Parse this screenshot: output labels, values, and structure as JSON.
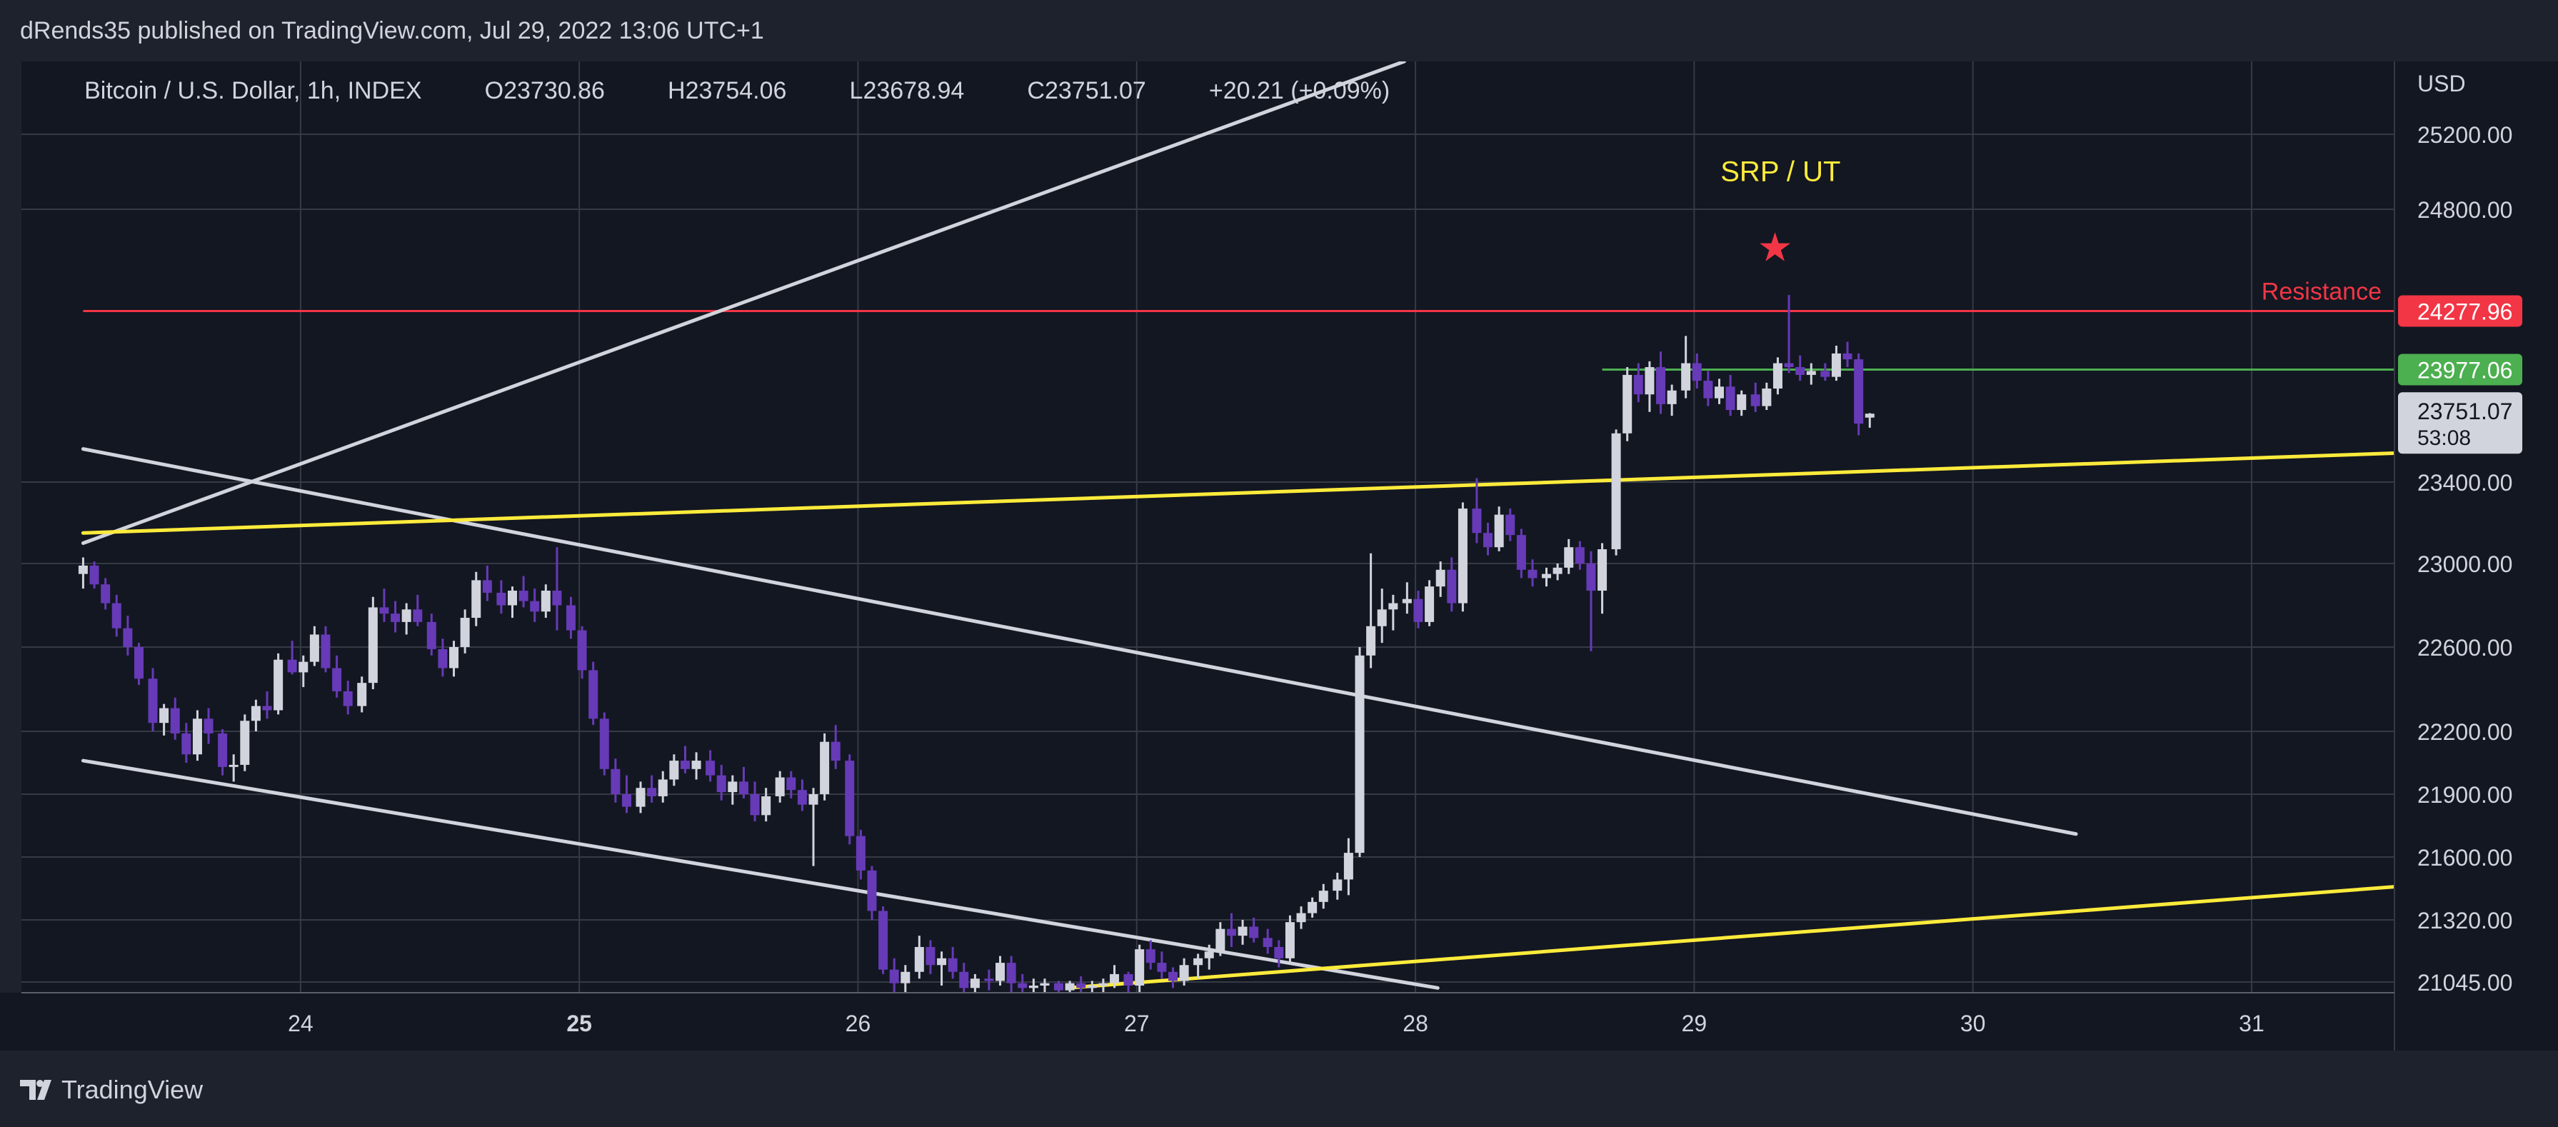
{
  "header": {
    "published": "dRends35 published on TradingView.com, Jul 29, 2022 13:06 UTC+1"
  },
  "legend": {
    "symbol": "Bitcoin / U.S. Dollar, 1h, INDEX",
    "open": "O23730.86",
    "high": "H23754.06",
    "low": "L23678.94",
    "close": "C23751.07",
    "change": "+20.21 (+0.09%)"
  },
  "footer": {
    "brand": "TradingView"
  },
  "colors": {
    "background": "#1e222d",
    "plot_background": "#131722",
    "grid": "#363a45",
    "text": "#d1d4dc",
    "bull_candle": "#d1d4dc",
    "bear_candle": "#673ab7",
    "resistance": "#f23645",
    "support_line": "#ffeb3b",
    "green_level": "#4caf50",
    "trendline": "#d1d4dc"
  },
  "chart_data": {
    "type": "candlestick",
    "title": "Bitcoin / U.S. Dollar, 1h, INDEX",
    "currency_label": "USD",
    "x_ticks": [
      {
        "label": "24",
        "t": 24,
        "bold": false
      },
      {
        "label": "25",
        "t": 25,
        "bold": true
      },
      {
        "label": "26",
        "t": 26,
        "bold": false
      },
      {
        "label": "27",
        "t": 27,
        "bold": false
      },
      {
        "label": "28",
        "t": 28,
        "bold": false
      },
      {
        "label": "29",
        "t": 29,
        "bold": false
      },
      {
        "label": "30",
        "t": 30,
        "bold": false
      },
      {
        "label": "31",
        "t": 31,
        "bold": false
      }
    ],
    "x_range": [
      23.22,
      31.75
    ],
    "y_ticks": [
      25200,
      24800,
      23400,
      23000,
      22600,
      22200,
      21900,
      21600,
      21320,
      21045
    ],
    "y_tick_labels": [
      "25200.00",
      "24800.00",
      "23400.00",
      "23000.00",
      "22600.00",
      "22200.00",
      "21900.00",
      "21600.00",
      "21320.00",
      "21045.00"
    ],
    "y_range": [
      21000,
      25550
    ],
    "scale": "piecewise-linear between ticks (auto scale as printed)",
    "price_labels": [
      {
        "value": 24277.96,
        "text": "24277.96",
        "kind": "resistance"
      },
      {
        "value": 23977.06,
        "text": "23977.06",
        "kind": "green"
      },
      {
        "value": 23751.07,
        "text": "23751.07",
        "countdown": "53:08",
        "kind": "last"
      }
    ],
    "horizontal_levels": [
      {
        "name": "Resistance",
        "value": 24277.96,
        "t_start": 23.22,
        "t_end": 31.75,
        "color": "#f23645"
      },
      {
        "name": "",
        "value": 23977.06,
        "t_start": 28.67,
        "t_end": 31.75,
        "color": "#4caf50"
      }
    ],
    "trendlines": [
      {
        "color": "#d1d4dc",
        "p1": [
          23.22,
          23100
        ],
        "p2": [
          27.96,
          25550
        ]
      },
      {
        "color": "#d1d4dc",
        "p1": [
          23.22,
          23570
        ],
        "p2": [
          30.37,
          21710
        ]
      },
      {
        "color": "#d1d4dc",
        "p1": [
          23.22,
          22060
        ],
        "p2": [
          28.08,
          21020
        ]
      },
      {
        "color": "#ffeb3b",
        "p1": [
          23.22,
          23150
        ],
        "p2": [
          31.75,
          23560
        ]
      },
      {
        "color": "#ffeb3b",
        "p1": [
          26.75,
          21020
        ],
        "p2": [
          31.75,
          21490
        ]
      }
    ],
    "annotations": [
      {
        "text": "SRP / UT",
        "t": 29.31,
        "value": 24950,
        "color": "#ffeb3b"
      },
      {
        "text": "★",
        "t": 29.29,
        "value": 24600,
        "color": "#f23645"
      },
      {
        "text": "Resistance",
        "value": 24277.96,
        "position": "right",
        "color": "#f23645"
      }
    ],
    "candles_ohlc_order": [
      "time_day",
      "open",
      "high",
      "low",
      "close"
    ],
    "candles": [
      [
        23.22,
        22950,
        23030,
        22880,
        22990
      ],
      [
        23.26,
        22990,
        23010,
        22880,
        22900
      ],
      [
        23.3,
        22900,
        22930,
        22780,
        22810
      ],
      [
        23.34,
        22810,
        22850,
        22650,
        22690
      ],
      [
        23.38,
        22690,
        22750,
        22560,
        22600
      ],
      [
        23.42,
        22600,
        22620,
        22420,
        22450
      ],
      [
        23.47,
        22450,
        22500,
        22200,
        22240
      ],
      [
        23.51,
        22240,
        22330,
        22180,
        22310
      ],
      [
        23.55,
        22310,
        22360,
        22160,
        22190
      ],
      [
        23.59,
        22190,
        22240,
        22050,
        22090
      ],
      [
        23.63,
        22090,
        22300,
        22060,
        22260
      ],
      [
        23.67,
        22260,
        22310,
        22140,
        22190
      ],
      [
        23.72,
        22190,
        22210,
        21990,
        22030
      ],
      [
        23.76,
        22030,
        22090,
        21960,
        22040
      ],
      [
        23.8,
        22040,
        22280,
        22010,
        22250
      ],
      [
        23.84,
        22250,
        22350,
        22200,
        22320
      ],
      [
        23.88,
        22320,
        22390,
        22260,
        22300
      ],
      [
        23.92,
        22300,
        22570,
        22280,
        22540
      ],
      [
        23.97,
        22540,
        22630,
        22470,
        22480
      ],
      [
        24.01,
        22480,
        22560,
        22410,
        22530
      ],
      [
        24.05,
        22530,
        22700,
        22510,
        22660
      ],
      [
        24.09,
        22660,
        22700,
        22480,
        22500
      ],
      [
        24.13,
        22500,
        22560,
        22360,
        22390
      ],
      [
        24.17,
        22390,
        22440,
        22280,
        22320
      ],
      [
        24.22,
        22320,
        22460,
        22290,
        22430
      ],
      [
        24.26,
        22430,
        22840,
        22400,
        22790
      ],
      [
        24.3,
        22790,
        22880,
        22720,
        22760
      ],
      [
        24.34,
        22760,
        22820,
        22670,
        22720
      ],
      [
        24.38,
        22720,
        22810,
        22660,
        22780
      ],
      [
        24.42,
        22780,
        22850,
        22700,
        22720
      ],
      [
        24.47,
        22720,
        22760,
        22560,
        22590
      ],
      [
        24.51,
        22590,
        22640,
        22460,
        22500
      ],
      [
        24.55,
        22500,
        22630,
        22460,
        22600
      ],
      [
        24.59,
        22600,
        22780,
        22570,
        22740
      ],
      [
        24.63,
        22740,
        22960,
        22700,
        22920
      ],
      [
        24.67,
        22920,
        22990,
        22820,
        22860
      ],
      [
        24.72,
        22860,
        22920,
        22760,
        22800
      ],
      [
        24.76,
        22800,
        22890,
        22740,
        22870
      ],
      [
        24.8,
        22870,
        22940,
        22790,
        22820
      ],
      [
        24.84,
        22820,
        22880,
        22720,
        22770
      ],
      [
        24.88,
        22770,
        22900,
        22740,
        22870
      ],
      [
        24.92,
        22870,
        23080,
        22680,
        22800
      ],
      [
        24.97,
        22800,
        22840,
        22640,
        22680
      ],
      [
        25.01,
        22680,
        22700,
        22450,
        22490
      ],
      [
        25.05,
        22490,
        22530,
        22230,
        22260
      ],
      [
        25.09,
        22260,
        22290,
        21990,
        22020
      ],
      [
        25.13,
        22020,
        22070,
        21860,
        21900
      ],
      [
        25.17,
        21900,
        21990,
        21810,
        21840
      ],
      [
        25.22,
        21840,
        21960,
        21810,
        21930
      ],
      [
        25.26,
        21930,
        21990,
        21860,
        21890
      ],
      [
        25.3,
        21890,
        22010,
        21860,
        21970
      ],
      [
        25.34,
        21970,
        22090,
        21940,
        22060
      ],
      [
        25.38,
        22060,
        22130,
        22000,
        22020
      ],
      [
        25.42,
        22020,
        22100,
        21970,
        22060
      ],
      [
        25.47,
        22060,
        22110,
        21960,
        21990
      ],
      [
        25.51,
        21990,
        22040,
        21870,
        21910
      ],
      [
        25.55,
        21910,
        21990,
        21850,
        21960
      ],
      [
        25.59,
        21960,
        22030,
        21880,
        21900
      ],
      [
        25.63,
        21900,
        21960,
        21770,
        21800
      ],
      [
        25.67,
        21800,
        21930,
        21770,
        21890
      ],
      [
        25.72,
        21890,
        22010,
        21860,
        21980
      ],
      [
        25.76,
        21980,
        22010,
        21880,
        21920
      ],
      [
        25.8,
        21920,
        21970,
        21820,
        21850
      ],
      [
        25.84,
        21850,
        21930,
        21560,
        21900
      ],
      [
        25.88,
        21900,
        22190,
        21870,
        22150
      ],
      [
        25.92,
        22150,
        22230,
        22020,
        22060
      ],
      [
        25.97,
        22060,
        22090,
        21660,
        21700
      ],
      [
        26.01,
        21700,
        21730,
        21500,
        21540
      ],
      [
        26.05,
        21540,
        21560,
        21320,
        21360
      ],
      [
        26.09,
        21360,
        21380,
        21080,
        21100
      ],
      [
        26.13,
        21100,
        21150,
        21000,
        21040
      ],
      [
        26.17,
        21040,
        21120,
        21000,
        21090
      ],
      [
        26.22,
        21090,
        21250,
        21060,
        21200
      ],
      [
        26.26,
        21200,
        21230,
        21080,
        21120
      ],
      [
        26.3,
        21120,
        21180,
        21030,
        21150
      ],
      [
        26.34,
        21150,
        21200,
        21060,
        21090
      ],
      [
        26.38,
        21090,
        21130,
        21000,
        21020
      ],
      [
        26.42,
        21020,
        21080,
        21000,
        21060
      ],
      [
        26.47,
        21060,
        21100,
        21010,
        21050
      ],
      [
        26.51,
        21050,
        21160,
        21030,
        21130
      ],
      [
        26.55,
        21130,
        21160,
        21000,
        21040
      ],
      [
        26.59,
        21040,
        21080,
        21000,
        21020
      ],
      [
        26.63,
        21020,
        21060,
        21000,
        21030
      ],
      [
        26.67,
        21030,
        21060,
        21000,
        21040
      ],
      [
        26.72,
        21040,
        21050,
        21000,
        21010
      ],
      [
        26.76,
        21010,
        21050,
        21000,
        21040
      ],
      [
        26.8,
        21040,
        21070,
        21000,
        21020
      ],
      [
        26.84,
        21020,
        21050,
        21000,
        21030
      ],
      [
        26.88,
        21030,
        21060,
        21000,
        21040
      ],
      [
        26.92,
        21040,
        21120,
        21020,
        21080
      ],
      [
        26.97,
        21080,
        21090,
        21000,
        21030
      ],
      [
        27.01,
        21030,
        21210,
        21000,
        21190
      ],
      [
        27.05,
        21190,
        21230,
        21100,
        21130
      ],
      [
        27.09,
        21130,
        21180,
        21060,
        21090
      ],
      [
        27.13,
        21090,
        21110,
        21020,
        21050
      ],
      [
        27.17,
        21050,
        21150,
        21030,
        21120
      ],
      [
        27.22,
        21120,
        21170,
        21060,
        21150
      ],
      [
        27.26,
        21150,
        21210,
        21100,
        21180
      ],
      [
        27.3,
        21180,
        21310,
        21160,
        21280
      ],
      [
        27.34,
        21280,
        21350,
        21200,
        21250
      ],
      [
        27.38,
        21250,
        21320,
        21210,
        21290
      ],
      [
        27.42,
        21290,
        21330,
        21220,
        21240
      ],
      [
        27.47,
        21240,
        21280,
        21170,
        21200
      ],
      [
        27.51,
        21200,
        21230,
        21110,
        21150
      ],
      [
        27.55,
        21150,
        21340,
        21130,
        21310
      ],
      [
        27.59,
        21310,
        21380,
        21280,
        21350
      ],
      [
        27.63,
        21350,
        21420,
        21330,
        21400
      ],
      [
        27.67,
        21400,
        21480,
        21370,
        21450
      ],
      [
        27.72,
        21450,
        21530,
        21410,
        21500
      ],
      [
        27.76,
        21500,
        21690,
        21430,
        21620
      ],
      [
        27.8,
        21620,
        22600,
        21600,
        22560
      ],
      [
        27.84,
        22560,
        23050,
        22500,
        22700
      ],
      [
        27.88,
        22700,
        22880,
        22620,
        22780
      ],
      [
        27.92,
        22780,
        22850,
        22680,
        22810
      ],
      [
        27.97,
        22810,
        22910,
        22760,
        22830
      ],
      [
        28.01,
        22830,
        22870,
        22690,
        22720
      ],
      [
        28.05,
        22720,
        22920,
        22700,
        22890
      ],
      [
        28.09,
        22890,
        23010,
        22840,
        22970
      ],
      [
        28.13,
        22970,
        23030,
        22770,
        22810
      ],
      [
        28.17,
        22810,
        23300,
        22770,
        23270
      ],
      [
        28.22,
        23270,
        23420,
        23100,
        23150
      ],
      [
        28.26,
        23150,
        23200,
        23040,
        23080
      ],
      [
        28.3,
        23080,
        23280,
        23060,
        23240
      ],
      [
        28.34,
        23240,
        23270,
        23110,
        23140
      ],
      [
        28.38,
        23140,
        23170,
        22930,
        22970
      ],
      [
        28.42,
        22970,
        23020,
        22890,
        22930
      ],
      [
        28.47,
        22930,
        22980,
        22890,
        22950
      ],
      [
        28.51,
        22950,
        23000,
        22920,
        22980
      ],
      [
        28.55,
        22980,
        23120,
        22950,
        23080
      ],
      [
        28.59,
        23080,
        23110,
        22970,
        23000
      ],
      [
        28.63,
        23000,
        23060,
        22580,
        22870
      ],
      [
        28.67,
        22870,
        23100,
        22760,
        23070
      ],
      [
        28.72,
        23070,
        23670,
        23040,
        23650
      ],
      [
        28.76,
        23650,
        23990,
        23610,
        23950
      ],
      [
        28.8,
        23950,
        24010,
        23810,
        23850
      ],
      [
        28.84,
        23850,
        24020,
        23760,
        23990
      ],
      [
        28.88,
        23990,
        24070,
        23750,
        23800
      ],
      [
        28.92,
        23800,
        23900,
        23740,
        23870
      ],
      [
        28.97,
        23870,
        24150,
        23830,
        24010
      ],
      [
        29.01,
        24010,
        24060,
        23880,
        23920
      ],
      [
        29.05,
        23920,
        23970,
        23790,
        23830
      ],
      [
        29.09,
        23830,
        23930,
        23800,
        23890
      ],
      [
        29.13,
        23890,
        23950,
        23740,
        23770
      ],
      [
        29.17,
        23770,
        23870,
        23740,
        23850
      ],
      [
        29.22,
        23850,
        23910,
        23760,
        23790
      ],
      [
        29.26,
        23790,
        23910,
        23770,
        23880
      ],
      [
        29.3,
        23880,
        24040,
        23850,
        24010
      ],
      [
        29.34,
        24010,
        24360,
        23960,
        23990
      ],
      [
        29.38,
        23990,
        24050,
        23920,
        23950
      ],
      [
        29.42,
        23950,
        24010,
        23900,
        23970
      ],
      [
        29.47,
        23970,
        24010,
        23920,
        23940
      ],
      [
        29.51,
        23940,
        24100,
        23920,
        24060
      ],
      [
        29.55,
        24060,
        24120,
        23990,
        24030
      ],
      [
        29.59,
        24030,
        24060,
        23640,
        23700
      ],
      [
        29.63,
        23730.86,
        23754.06,
        23678.94,
        23751.07
      ]
    ]
  }
}
